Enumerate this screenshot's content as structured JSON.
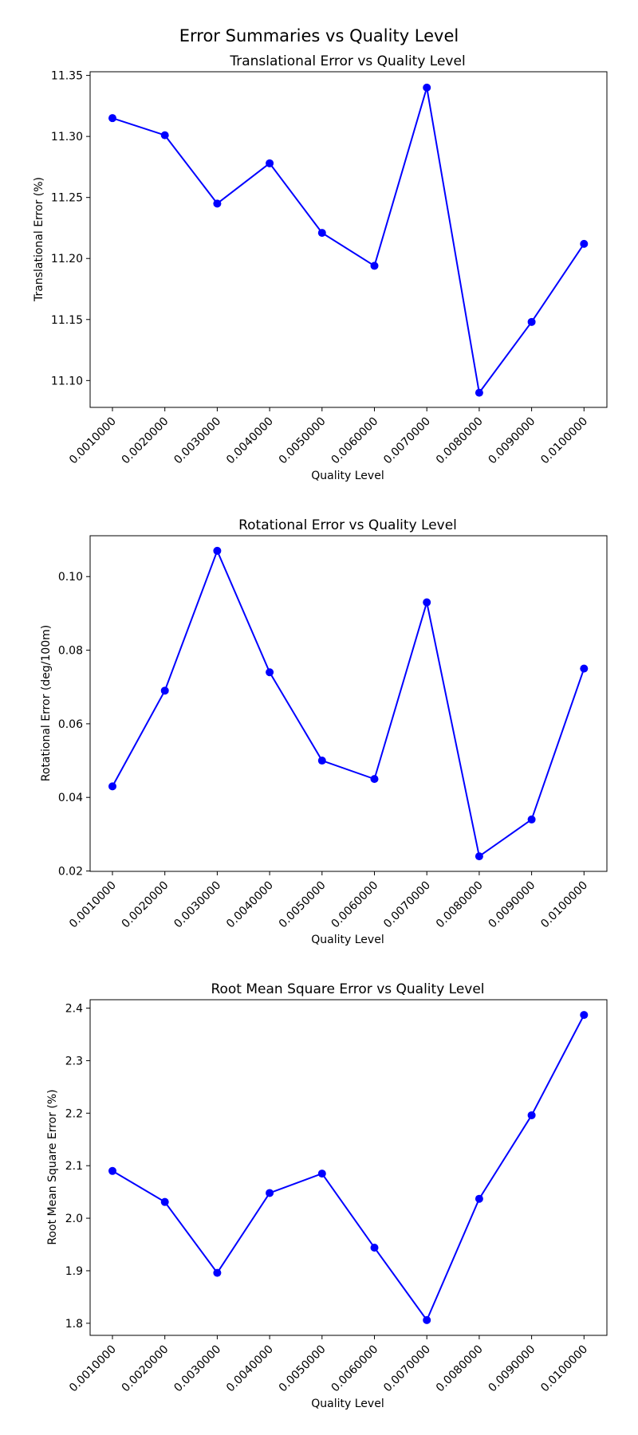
{
  "suptitle": "Error Summaries vs Quality Level",
  "line_color": "#0000ff",
  "chart_data": [
    {
      "type": "line",
      "title": "Translational Error vs Quality Level",
      "xlabel": "Quality Level",
      "ylabel": "Translational Error (%)",
      "categories": [
        "0.0010000",
        "0.0020000",
        "0.0030000",
        "0.0040000",
        "0.0050000",
        "0.0060000",
        "0.0070000",
        "0.0080000",
        "0.0090000",
        "0.0100000"
      ],
      "values": [
        11.315,
        11.301,
        11.245,
        11.278,
        11.221,
        11.194,
        11.34,
        11.09,
        11.148,
        11.212
      ],
      "ylim": [
        11.078,
        11.353
      ],
      "yticks": [
        11.1,
        11.15,
        11.2,
        11.25,
        11.3,
        11.35
      ],
      "ytick_labels": [
        "11.10",
        "11.15",
        "11.20",
        "11.25",
        "11.30",
        "11.35"
      ]
    },
    {
      "type": "line",
      "title": "Rotational Error vs Quality Level",
      "xlabel": "Quality Level",
      "ylabel": "Rotational Error (deg/100m)",
      "categories": [
        "0.0010000",
        "0.0020000",
        "0.0030000",
        "0.0040000",
        "0.0050000",
        "0.0060000",
        "0.0070000",
        "0.0080000",
        "0.0090000",
        "0.0100000"
      ],
      "values": [
        0.043,
        0.069,
        0.107,
        0.074,
        0.05,
        0.045,
        0.093,
        0.024,
        0.034,
        0.075
      ],
      "ylim": [
        0.0199,
        0.1111
      ],
      "yticks": [
        0.02,
        0.04,
        0.06,
        0.08,
        0.1
      ],
      "ytick_labels": [
        "0.02",
        "0.04",
        "0.06",
        "0.08",
        "0.10"
      ]
    },
    {
      "type": "line",
      "title": "Root Mean Square Error vs Quality Level",
      "xlabel": "Quality Level",
      "ylabel": "Root Mean Square Error (%)",
      "categories": [
        "0.0010000",
        "0.0020000",
        "0.0030000",
        "0.0040000",
        "0.0050000",
        "0.0060000",
        "0.0070000",
        "0.0080000",
        "0.0090000",
        "0.0100000"
      ],
      "values": [
        2.09,
        2.031,
        1.896,
        2.048,
        2.085,
        1.944,
        1.806,
        2.037,
        2.196,
        2.387
      ],
      "ylim": [
        1.777,
        2.416
      ],
      "yticks": [
        1.8,
        1.9,
        2.0,
        2.1,
        2.2,
        2.3,
        2.4
      ],
      "ytick_labels": [
        "1.8",
        "1.9",
        "2.0",
        "2.1",
        "2.2",
        "2.3",
        "2.4"
      ]
    }
  ]
}
